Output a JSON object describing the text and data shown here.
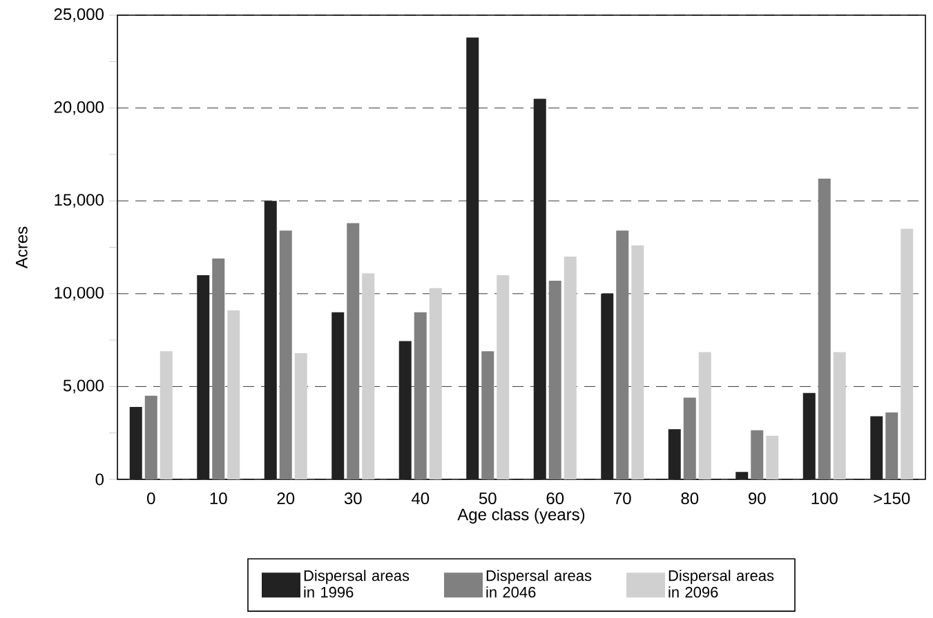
{
  "chart_data": {
    "type": "bar",
    "xlabel": "Age class (years)",
    "ylabel": "Acres",
    "categories": [
      "0",
      "10",
      "20",
      "30",
      "40",
      "50",
      "60",
      "70",
      "80",
      "90",
      "100",
      ">150"
    ],
    "series": [
      {
        "name": "Dispersal areas in 1996",
        "color": "#222222",
        "values": [
          3900,
          11000,
          15000,
          9000,
          7450,
          23800,
          20500,
          10000,
          2700,
          400,
          4650,
          3400
        ]
      },
      {
        "name": "Dispersal areas in 2046",
        "color": "#808080",
        "values": [
          4500,
          11900,
          13400,
          13800,
          9000,
          6900,
          10700,
          13400,
          4400,
          2650,
          16200,
          3600
        ]
      },
      {
        "name": "Dispersal areas in 2096",
        "color": "#d0d0d0",
        "values": [
          6900,
          9100,
          6800,
          11100,
          10300,
          11000,
          12000,
          12600,
          6850,
          2350,
          6850,
          13500
        ]
      }
    ],
    "ylim": [
      0,
      25000
    ],
    "yticks": [
      0,
      {
        "value": 2500,
        "label": null
      },
      {
        "value": 5000,
        "label": "5,000"
      },
      {
        "value": 7500,
        "label": null
      },
      {
        "value": 10000,
        "label": "10,000"
      },
      {
        "value": 12500,
        "label": null
      },
      {
        "value": 15000,
        "label": "15,000"
      },
      {
        "value": 17500,
        "label": null
      },
      {
        "value": 20000,
        "label": "20,000"
      },
      {
        "value": 22500,
        "label": null
      },
      {
        "value": 25000,
        "label": "25,000"
      }
    ],
    "grid": "y",
    "legend": "bottom"
  }
}
